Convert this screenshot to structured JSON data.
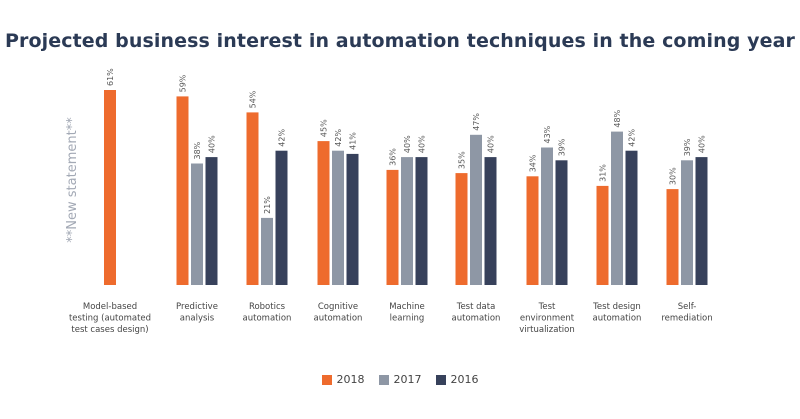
{
  "chart_data": {
    "type": "bar",
    "title": "Projected business interest in automation techniques in the coming year",
    "categories": [
      [
        "Model-based",
        "testing (automated",
        "test cases design)"
      ],
      [
        "Predictive",
        "analysis"
      ],
      [
        "Robotics",
        "automation"
      ],
      [
        "Cognitive",
        "automation"
      ],
      [
        "Machine",
        "learning"
      ],
      [
        "Test data",
        "automation"
      ],
      [
        "Test",
        "environment",
        "virtualization"
      ],
      [
        "Test design",
        "automation"
      ],
      [
        "Self-",
        "remediation"
      ]
    ],
    "series": [
      {
        "name": "2018",
        "color": "#ee6b2d",
        "values": [
          61,
          59,
          54,
          45,
          36,
          35,
          34,
          31,
          30
        ],
        "labels": [
          "61%",
          "59%",
          "54%",
          "45%",
          "36%",
          "35%",
          "34%",
          "31%",
          "30%"
        ]
      },
      {
        "name": "2017",
        "color": "#8e97a5",
        "values": [
          null,
          38,
          21,
          42,
          40,
          47,
          43,
          48,
          39
        ],
        "labels": [
          "",
          "38%",
          "21%",
          "42%",
          "40%",
          "47%",
          "43%",
          "48%",
          "39%"
        ]
      },
      {
        "name": "2016",
        "color": "#37415b",
        "values": [
          null,
          40,
          42,
          41,
          40,
          40,
          39,
          42,
          40
        ],
        "labels": [
          "",
          "40%",
          "42%",
          "41%",
          "40%",
          "40%",
          "39%",
          "42%",
          "40%"
        ]
      }
    ],
    "annotation": "**New statement**",
    "ylim": [
      0,
      61
    ],
    "grid": false,
    "legend_position": "bottom"
  }
}
